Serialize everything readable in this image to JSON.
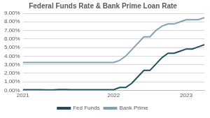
{
  "chart_data": {
    "type": "line",
    "title": "Federal Funds Rate & Bank Prime Loan Rate",
    "categories": [
      "2021",
      null,
      null,
      null,
      null,
      null,
      null,
      null,
      null,
      null,
      null,
      null,
      null,
      null,
      null,
      "2022",
      null,
      null,
      null,
      null,
      null,
      null,
      null,
      null,
      null,
      null,
      null,
      "2023",
      null,
      null,
      null
    ],
    "series": [
      {
        "name": "Fed Funds",
        "color": "#1f4e5f",
        "values": [
          0.08,
          0.08,
          0.07,
          0.07,
          0.06,
          0.06,
          0.1,
          0.09,
          0.08,
          0.08,
          0.08,
          0.08,
          0.08,
          0.08,
          0.08,
          0.08,
          0.33,
          0.33,
          0.83,
          1.58,
          2.33,
          2.33,
          3.08,
          3.83,
          4.33,
          4.33,
          4.58,
          4.83,
          4.83,
          5.08,
          5.33
        ]
      },
      {
        "name": "Bank Prime",
        "color": "#7fa3b4",
        "values": [
          3.25,
          3.25,
          3.25,
          3.25,
          3.25,
          3.25,
          3.25,
          3.25,
          3.25,
          3.25,
          3.25,
          3.25,
          3.25,
          3.25,
          3.25,
          3.25,
          3.5,
          4,
          4.75,
          5.5,
          6.25,
          6.25,
          7,
          7.5,
          7.75,
          7.75,
          8,
          8.25,
          8.25,
          8.25,
          8.5
        ]
      }
    ],
    "ylim": [
      0,
      9
    ],
    "yticks": [
      {
        "value": 0,
        "label": "0.00%"
      },
      {
        "value": 1,
        "label": "1.00%"
      },
      {
        "value": 2,
        "label": "2.00%"
      },
      {
        "value": 3,
        "label": "3.00%"
      },
      {
        "value": 4,
        "label": "4.00%"
      },
      {
        "value": 5,
        "label": "5.00%"
      },
      {
        "value": 6,
        "label": "6.00%"
      },
      {
        "value": 7,
        "label": "7.00%"
      },
      {
        "value": 8,
        "label": "8.00%"
      },
      {
        "value": 9,
        "label": "9.00%"
      }
    ],
    "grid": true,
    "legend": "bottom"
  }
}
